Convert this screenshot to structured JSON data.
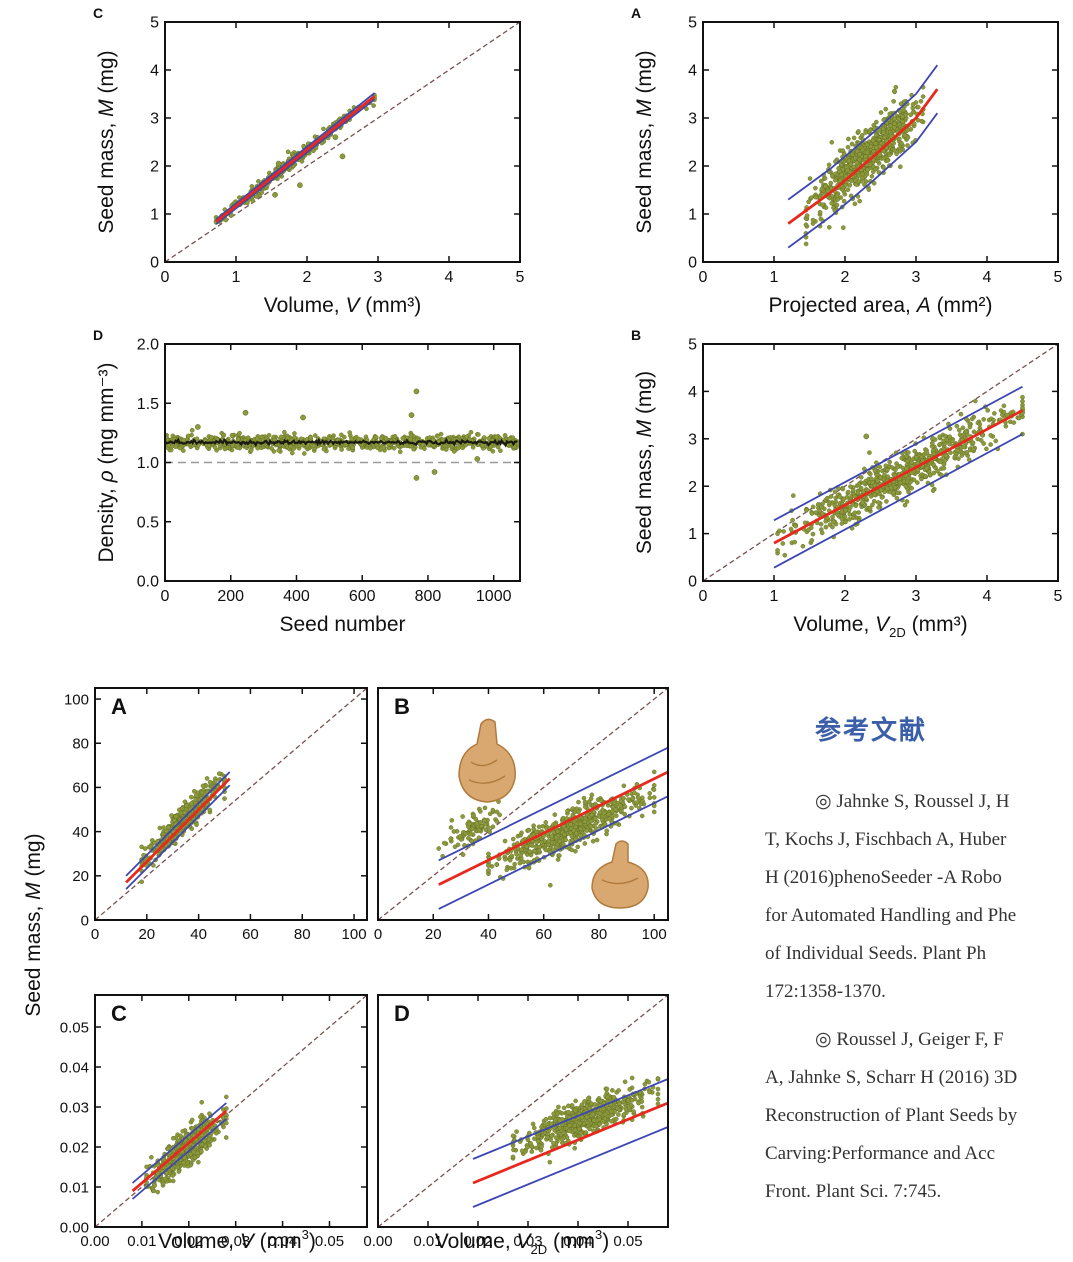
{
  "chart_data": [
    {
      "id": "C",
      "type": "scatter",
      "panel_label": "C",
      "xlabel": "Volume, ",
      "xlabel_var": "V",
      "xlabel_unit": " (mm³)",
      "ylabel": "Seed mass, ",
      "ylabel_var": "M",
      "ylabel_unit": " (mg)",
      "xlim": [
        0,
        5
      ],
      "ylim": [
        0,
        5
      ],
      "xticks": [
        "0",
        "1",
        "2",
        "3",
        "4",
        "5"
      ],
      "yticks": [
        "0",
        "1",
        "2",
        "3",
        "4",
        "5"
      ],
      "identity_line": true,
      "fit_line": [
        [
          0.72,
          0.84
        ],
        [
          2.95,
          3.45
        ]
      ],
      "band_upper": [
        [
          0.72,
          0.89
        ],
        [
          2.95,
          3.52
        ]
      ],
      "band_lower": [
        [
          0.72,
          0.79
        ],
        [
          2.95,
          3.39
        ]
      ],
      "points_along": {
        "x_range": [
          0.72,
          2.95
        ],
        "slope": 1.17,
        "intercept": 0.0,
        "spread": 0.07,
        "count": 300
      },
      "outliers": [
        [
          1.5,
          1.75
        ],
        [
          1.55,
          1.4
        ],
        [
          2.5,
          2.2
        ],
        [
          1.6,
          2.05
        ],
        [
          2.4,
          2.6
        ],
        [
          1.9,
          1.6
        ]
      ]
    },
    {
      "id": "A",
      "type": "scatter",
      "panel_label": "A",
      "xlabel": "Projected area, ",
      "xlabel_var": "A",
      "xlabel_unit": " (mm²)",
      "ylabel": "Seed mass, ",
      "ylabel_var": "M",
      "ylabel_unit": " (mg)",
      "xlim": [
        0,
        5
      ],
      "ylim": [
        0,
        5
      ],
      "xticks": [
        "0",
        "1",
        "2",
        "3",
        "4",
        "5"
      ],
      "yticks": [
        "0",
        "1",
        "2",
        "3",
        "4",
        "5"
      ],
      "identity_line": false,
      "fit_line": [
        [
          1.2,
          0.8
        ],
        [
          1.8,
          1.45
        ],
        [
          2.4,
          2.2
        ],
        [
          3.0,
          3.0
        ],
        [
          3.3,
          3.6
        ]
      ],
      "band_upper": [
        [
          1.2,
          1.3
        ],
        [
          1.8,
          1.95
        ],
        [
          2.4,
          2.7
        ],
        [
          3.0,
          3.5
        ],
        [
          3.3,
          4.1
        ]
      ],
      "band_lower": [
        [
          1.2,
          0.3
        ],
        [
          1.8,
          0.95
        ],
        [
          2.4,
          1.7
        ],
        [
          3.0,
          2.5
        ],
        [
          3.3,
          3.1
        ]
      ],
      "points_along": {
        "x_range": [
          1.45,
          3.1
        ],
        "slope": 1.3,
        "intercept": -0.8,
        "spread": 0.28,
        "count": 700
      },
      "outliers": []
    },
    {
      "id": "D",
      "type": "scatter",
      "panel_label": "D",
      "xlabel": "Seed number",
      "xlabel_var": "",
      "xlabel_unit": "",
      "ylabel": "Density, ",
      "ylabel_var": "ρ",
      "ylabel_unit": " (mg mm⁻³)",
      "xlim": [
        0,
        1080
      ],
      "ylim": [
        0.0,
        2.0
      ],
      "xticks": [
        "0",
        "200",
        "400",
        "600",
        "800",
        "1000"
      ],
      "yticks": [
        "0.0",
        "0.5",
        "1.0",
        "1.5",
        "2.0"
      ],
      "hline": 1.0,
      "points_along": {
        "x_range": [
          0,
          1075
        ],
        "slope": 0,
        "intercept": 1.17,
        "spread": 0.03,
        "count": 800
      },
      "outliers": [
        [
          245,
          1.42
        ],
        [
          765,
          1.6
        ],
        [
          750,
          1.4
        ],
        [
          765,
          0.87
        ],
        [
          820,
          0.92
        ],
        [
          420,
          1.38
        ],
        [
          100,
          1.3
        ],
        [
          950,
          1.03
        ]
      ]
    },
    {
      "id": "B",
      "type": "scatter",
      "panel_label": "B",
      "xlabel": "Volume, ",
      "xlabel_var": "V",
      "xlabel_sub": "2D",
      "xlabel_unit": " (mm³)",
      "ylabel": "Seed mass, ",
      "ylabel_var": "M",
      "ylabel_unit": " (mg)",
      "xlim": [
        0,
        5
      ],
      "ylim": [
        0,
        5
      ],
      "xticks": [
        "0",
        "1",
        "2",
        "3",
        "4",
        "5"
      ],
      "yticks": [
        "0",
        "1",
        "2",
        "3",
        "4",
        "5"
      ],
      "identity_line": true,
      "fit_line": [
        [
          1.0,
          0.8
        ],
        [
          4.5,
          3.6
        ]
      ],
      "band_upper": [
        [
          1.0,
          1.28
        ],
        [
          4.5,
          4.1
        ]
      ],
      "band_lower": [
        [
          1.0,
          0.28
        ],
        [
          4.5,
          3.1
        ]
      ],
      "points_along": {
        "x_range": [
          1.05,
          4.5
        ],
        "slope": 0.8,
        "intercept": 0.0,
        "spread": 0.22,
        "count": 700
      },
      "outliers": [
        [
          2.3,
          3.05
        ]
      ]
    },
    {
      "id": "LA",
      "type": "scatter",
      "panel_label": "A",
      "xlim": [
        0,
        105
      ],
      "ylim": [
        0,
        105
      ],
      "xticks": [
        "0",
        "20",
        "40",
        "60",
        "80",
        "100"
      ],
      "yticks": [
        "0",
        "20",
        "40",
        "60",
        "80",
        "100"
      ],
      "identity_line": true,
      "fit_line": [
        [
          12,
          17
        ],
        [
          52,
          64
        ]
      ],
      "band_upper": [
        [
          12,
          20
        ],
        [
          52,
          67
        ]
      ],
      "band_lower": [
        [
          12,
          14
        ],
        [
          52,
          61
        ]
      ],
      "points_along": {
        "x_range": [
          18,
          50
        ],
        "slope": 1.2,
        "intercept": 4,
        "spread": 3.0,
        "count": 450
      },
      "outliers": []
    },
    {
      "id": "LB",
      "type": "scatter",
      "panel_label": "B",
      "xlim": [
        0,
        105
      ],
      "ylim": [
        0,
        105
      ],
      "xticks": [
        "0",
        "20",
        "40",
        "60",
        "80",
        "100"
      ],
      "yticks": [],
      "identity_line": true,
      "fit_line": [
        [
          22,
          16
        ],
        [
          105,
          67
        ]
      ],
      "band_upper": [
        [
          22,
          27
        ],
        [
          105,
          78
        ]
      ],
      "band_lower": [
        [
          22,
          5
        ],
        [
          105,
          56
        ]
      ],
      "points_along": {
        "x_range": [
          40,
          100
        ],
        "slope": 0.55,
        "intercept": 3,
        "spread": 4.5,
        "count": 550
      },
      "points_extra": {
        "x_range": [
          22,
          45
        ],
        "slope": 0.7,
        "intercept": 17,
        "spread": 3.0,
        "count": 90
      },
      "outliers": []
    },
    {
      "id": "LC",
      "type": "scatter",
      "panel_label": "C",
      "xlim": [
        0,
        0.058
      ],
      "ylim": [
        0,
        0.058
      ],
      "xticks": [
        "0.00",
        "0.01",
        "0.02",
        "0.03",
        "0.04",
        "0.05"
      ],
      "yticks": [
        "0.00",
        "0.01",
        "0.02",
        "0.03",
        "0.04",
        "0.05"
      ],
      "identity_line": true,
      "fit_line": [
        [
          0.008,
          0.009
        ],
        [
          0.028,
          0.029
        ]
      ],
      "band_upper": [
        [
          0.008,
          0.011
        ],
        [
          0.028,
          0.031
        ]
      ],
      "band_lower": [
        [
          0.008,
          0.007
        ],
        [
          0.028,
          0.027
        ]
      ],
      "points_along": {
        "x_range": [
          0.011,
          0.028
        ],
        "slope": 1.0,
        "intercept": 0.0,
        "spread": 0.0022,
        "count": 500
      },
      "outliers": []
    },
    {
      "id": "LD",
      "type": "scatter",
      "panel_label": "D",
      "xlim": [
        0,
        0.058
      ],
      "ylim": [
        0,
        0.058
      ],
      "xticks": [
        "0.00",
        "0.01",
        "0.02",
        "0.03",
        "0.04",
        "0.05"
      ],
      "yticks": [],
      "identity_line": true,
      "fit_line": [
        [
          0.019,
          0.011
        ],
        [
          0.058,
          0.031
        ]
      ],
      "band_upper": [
        [
          0.019,
          0.017
        ],
        [
          0.058,
          0.037
        ]
      ],
      "band_lower": [
        [
          0.019,
          0.005
        ],
        [
          0.058,
          0.025
        ]
      ],
      "points_along": {
        "x_range": [
          0.027,
          0.056
        ],
        "slope": 0.5,
        "intercept": 0.0065,
        "spread": 0.0022,
        "count": 550
      },
      "outliers": []
    }
  ],
  "lower_figure": {
    "ylabel": "Seed mass, ",
    "ylabel_var": "M",
    "ylabel_unit": " (mg)",
    "xlabel_left": "Volume, ",
    "xlabel_left_var": "V",
    "xlabel_left_unit": " (mm",
    "xlabel_left_sup": "3",
    "xlabel_left_end": ")",
    "xlabel_right": "Volume, ",
    "xlabel_right_var": "V",
    "xlabel_right_sub": "2D",
    "xlabel_right_unit": " (mm",
    "xlabel_right_sup": "3",
    "xlabel_right_end": ")"
  },
  "colors": {
    "points": "#8c9a3c",
    "points_dark": "#1a1a10",
    "fit": "#e8281e",
    "band": "#3c46b4",
    "identity": "#7a5050",
    "hline": "#999999",
    "axis": "#111111"
  },
  "references": {
    "title": "参考文献",
    "items": [
      {
        "lines": [
          "◎ Jahnke S, Roussel J, H",
          "T, Kochs J, Fischbach A, Huber",
          "H (2016)phenoSeeder -A Robo",
          "for Automated Handling and Phe",
          "of Individual Seeds. Plant Ph",
          "172:1358-1370."
        ]
      },
      {
        "lines": [
          "◎ Roussel J, Geiger F, F",
          "A, Jahnke S, Scharr H (2016) 3D",
          "Reconstruction of Plant Seeds by",
          "Carving:Performance and Acc",
          "Front. Plant Sci. 7:745."
        ]
      }
    ]
  }
}
